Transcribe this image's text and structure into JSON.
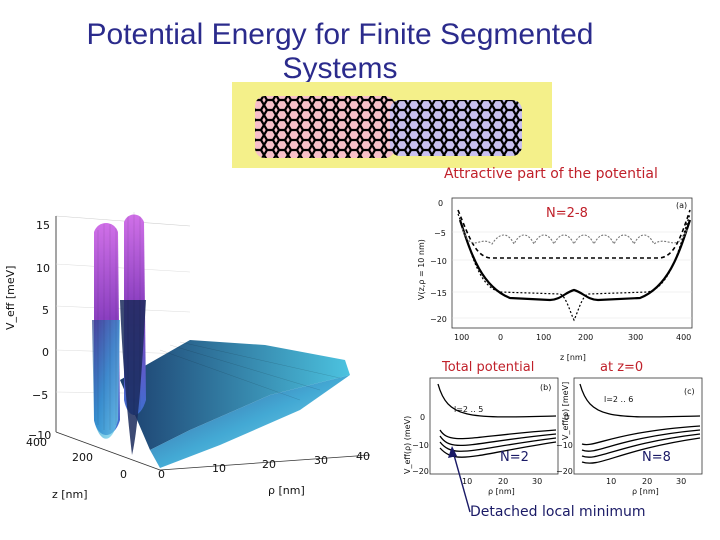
{
  "slide": {
    "title_line1": "Potential Energy for Finite Segmented",
    "title_line2": "Systems"
  },
  "labels": {
    "attractive": "Attractive part of the potential",
    "n_range": "N=2-8",
    "total": "Total potential",
    "at_z0": "at z=0",
    "n2": "N=2",
    "n8": "N=8",
    "detached": "Detached local minimum"
  },
  "plot3d": {
    "z_axis_label": "V_eff [meV]",
    "z_ticks": [
      "15",
      "10",
      "5",
      "0",
      "−5",
      "−10"
    ],
    "y_axis_label": "z [nm]",
    "y_ticks": [
      "400",
      "200",
      "0"
    ],
    "x_axis_label": "ρ [nm]",
    "x_ticks": [
      "0",
      "10",
      "20",
      "30",
      "40"
    ]
  },
  "panel_a": {
    "tag": "(a)",
    "ylabel": "V(z,ρ = 10 nm)",
    "yticks": [
      "0",
      "−5",
      "−10",
      "−15",
      "−20"
    ],
    "xticks": [
      "100",
      "0",
      "100",
      "200",
      "300",
      "400"
    ],
    "xlabel": "z [nm]"
  },
  "panel_b": {
    "tag": "(b)",
    "series_label": "l=2 .. 5",
    "ylabel": "V_eff(ρ) (meV)",
    "yticks": [
      "0",
      "−10",
      "−20"
    ],
    "xticks": [
      "10",
      "20",
      "30"
    ],
    "xlabel": "ρ [nm]"
  },
  "panel_c": {
    "tag": "(c)",
    "series_label": "l=2 .. 6",
    "ylabel": "V_eff(ρ) [meV]",
    "yticks": [
      "0",
      "−10",
      "−20"
    ],
    "xticks": [
      "10",
      "20",
      "30"
    ],
    "xlabel": "ρ [nm]"
  },
  "colors": {
    "title": "#2b2b8c",
    "label_red": "#c0202a",
    "label_navy": "#1a1a66",
    "tube_red": "#e0203a",
    "tube_blue": "#4a2ad8",
    "tube_bg": "#f4f08a",
    "surface_magenta": "#b14fd0",
    "surface_cyan": "#3fb7d8"
  }
}
